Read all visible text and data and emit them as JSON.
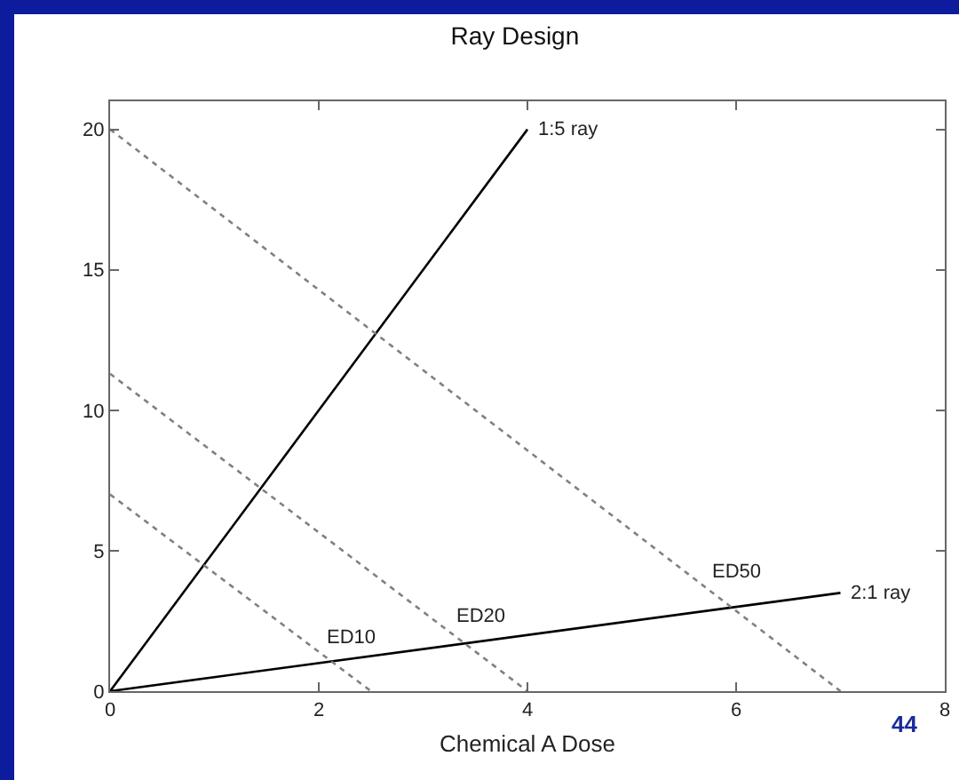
{
  "chart_data": {
    "type": "line",
    "title": "Ray Design",
    "xlabel": "Chemical A Dose",
    "xlim": [
      0,
      8
    ],
    "ylim": [
      0,
      21
    ],
    "xticks": [
      0,
      2,
      4,
      6,
      8
    ],
    "yticks": [
      0,
      5,
      10,
      15,
      20
    ],
    "grid": false,
    "legend": false,
    "marker": "none",
    "series": [
      {
        "name": "1:5 ray",
        "color": "#000000",
        "line_style": "solid",
        "x": [
          0,
          4
        ],
        "values": [
          0,
          20
        ]
      },
      {
        "name": "2:1 ray",
        "color": "#000000",
        "line_style": "solid",
        "x": [
          0,
          7
        ],
        "values": [
          0,
          3.5
        ]
      },
      {
        "name": "ED10",
        "color": "#808080",
        "line_style": "dotted",
        "x": [
          0,
          2.5
        ],
        "values": [
          7,
          0
        ]
      },
      {
        "name": "ED20",
        "color": "#808080",
        "line_style": "dotted",
        "x": [
          0,
          4
        ],
        "values": [
          11.3,
          0
        ]
      },
      {
        "name": "ED50",
        "color": "#808080",
        "line_style": "dotted",
        "x": [
          0,
          7
        ],
        "values": [
          20,
          0
        ]
      }
    ],
    "annotations": [
      "44"
    ]
  }
}
